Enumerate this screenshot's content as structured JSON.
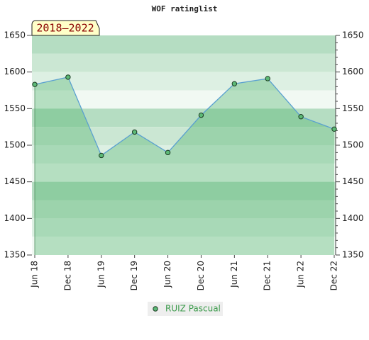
{
  "chart_data": {
    "type": "line",
    "title": "WOF ratinglist",
    "annotation": "2018–2022",
    "categories": [
      "Jun 18",
      "Dec 18",
      "Jun 19",
      "Dec 19",
      "Jun 20",
      "Dec 20",
      "Jun 21",
      "Dec 21",
      "Jun 22",
      "Dec 22"
    ],
    "series": [
      {
        "name": "RUIZ Pascual",
        "color": "#5aa0d0",
        "marker_color": "#5dba77",
        "values": [
          1583,
          1593,
          1486,
          1518,
          1490,
          1541,
          1584,
          1591,
          1539,
          1522
        ]
      }
    ],
    "ylim": [
      1350,
      1650
    ],
    "yticks": [
      1350,
      1400,
      1450,
      1500,
      1550,
      1600,
      1650
    ],
    "y2lim": [
      1350,
      1650
    ],
    "y2ticks": [
      1350,
      1400,
      1450,
      1500,
      1550,
      1600,
      1650
    ],
    "legend": "bottom"
  }
}
